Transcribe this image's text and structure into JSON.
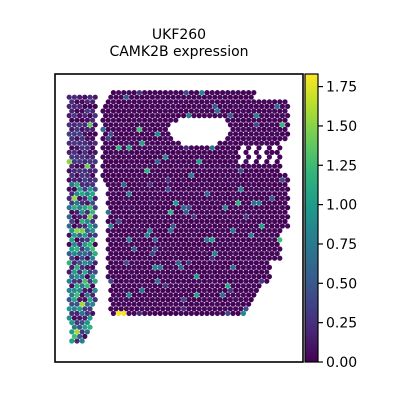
{
  "chart_data": {
    "type": "scatter",
    "subtype": "spatial-transcriptomics-spot-map",
    "title": "UKF260",
    "subtitle": "CAMK2B expression",
    "xlabel": "",
    "ylabel": "",
    "axis_ticks_visible": false,
    "grid": false,
    "colorbar": {
      "colormap": "viridis",
      "range": [
        0.0,
        1.83
      ],
      "ticks": [
        0.0,
        0.25,
        0.5,
        0.75,
        1.0,
        1.25,
        1.5,
        1.75
      ],
      "tick_labels": [
        "0.00",
        "0.25",
        "0.50",
        "0.75",
        "1.00",
        "1.25",
        "1.50",
        "1.75"
      ],
      "placement": "right"
    },
    "tissue_shape_note": "Tissue section with a narrow left strip of higher expression, a vertical gap, a large main region mostly near 0, and a hole near the upper right."
  },
  "colors": {
    "low": "#440154",
    "high": "#fde725",
    "frame": "#000000",
    "background": "#ffffff"
  }
}
